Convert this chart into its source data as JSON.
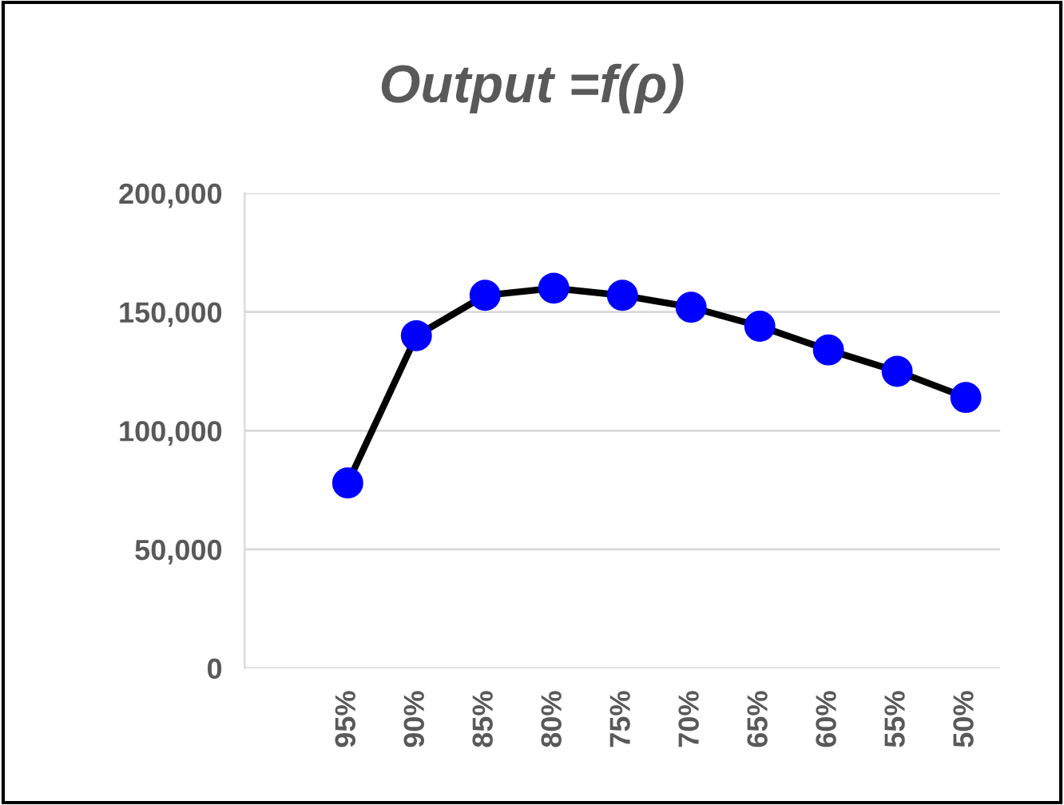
{
  "chart_data": {
    "type": "line",
    "title": "Output =f(ρ)",
    "categories": [
      null,
      "95%",
      "90%",
      "85%",
      "80%",
      "75%",
      "70%",
      "65%",
      "60%",
      "55%",
      "50%"
    ],
    "series": [
      {
        "color": "#0000ff",
        "values": [
          null,
          78000,
          140000,
          157000,
          160000,
          157000,
          152000,
          144000,
          134000,
          125000,
          114000
        ]
      }
    ],
    "ylim": [
      0,
      200000
    ],
    "yticks": [
      {
        "value": 0,
        "label": "0"
      },
      {
        "value": 50000,
        "label": "50,000"
      },
      {
        "value": 100000,
        "label": "100,000"
      },
      {
        "value": 150000,
        "label": "150,000"
      },
      {
        "value": 200000,
        "label": "200,000"
      }
    ],
    "grid": "y",
    "marker": "circle",
    "line_style": "solid",
    "legend": false
  }
}
